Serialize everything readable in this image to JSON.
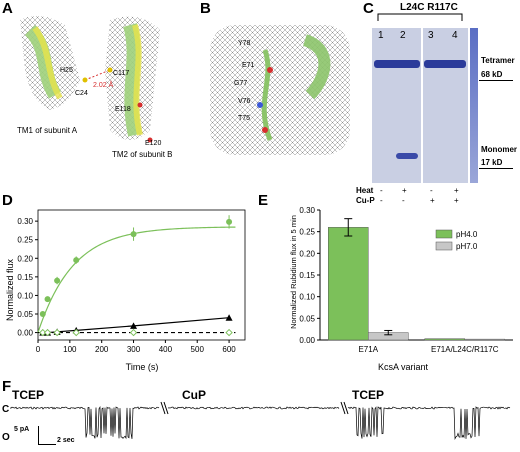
{
  "panels": {
    "A": {
      "letter": "A",
      "labels": [
        "H25",
        "C117",
        "2.02 Å",
        "C24",
        "E118",
        "E120"
      ],
      "captions": [
        "TM1 of subunit A",
        "TM2 of subunit B"
      ]
    },
    "B": {
      "letter": "B",
      "labels": [
        "Y78",
        "E71",
        "G77",
        "V76",
        "T75"
      ]
    },
    "C": {
      "letter": "C",
      "title": "L24C R117C",
      "lanes": [
        "1",
        "2",
        "3",
        "4"
      ],
      "right_labels": [
        {
          "name": "Tetramer",
          "mw": "68 kD"
        },
        {
          "name": "Monomer",
          "mw": "17 kD"
        }
      ],
      "rows": [
        {
          "label": "Heat",
          "values": [
            "-",
            "+",
            "-",
            "+"
          ]
        },
        {
          "label": "Cu-P",
          "values": [
            "-",
            "-",
            "+",
            "+"
          ]
        }
      ]
    },
    "D": {
      "letter": "D",
      "chart_data": {
        "type": "scatter",
        "xlabel": "Time (s)",
        "ylabel": "Normalized flux",
        "xlim": [
          0,
          650
        ],
        "ylim": [
          -0.02,
          0.33
        ],
        "xticks": [
          0,
          100,
          200,
          300,
          400,
          500,
          600
        ],
        "yticks": [
          0.0,
          0.05,
          0.1,
          0.15,
          0.2,
          0.25,
          0.3
        ],
        "ytick_labels": [
          "0.00",
          "0.05",
          "0.10",
          "0.15",
          "0.20",
          "0.25",
          "0.30"
        ],
        "series": [
          {
            "marker": "circle",
            "color": "#7cc05a",
            "x": [
              15,
              30,
              60,
              120,
              300,
              600
            ],
            "y": [
              0.05,
              0.09,
              0.14,
              0.195,
              0.265,
              0.298
            ],
            "err": [
              0.006,
              0.006,
              0.01,
              0.01,
              0.018,
              0.018
            ]
          },
          {
            "marker": "triangle",
            "color": "#000000",
            "x": [
              15,
              30,
              60,
              120,
              300,
              600
            ],
            "y": [
              0.0,
              0.0,
              0.002,
              0.006,
              0.018,
              0.04
            ],
            "err": [
              0,
              0,
              0,
              0,
              0.003,
              0.004
            ]
          },
          {
            "marker": "diamond",
            "color": "#7cc05a",
            "x": [
              15,
              30,
              60,
              120,
              300,
              600
            ],
            "y": [
              0.0,
              0.0,
              0.0,
              0.0,
              0.0,
              0.0
            ],
            "err": [
              0,
              0,
              0,
              0,
              0,
              0
            ]
          }
        ]
      }
    },
    "E": {
      "letter": "E",
      "chart_data": {
        "type": "bar",
        "categories": [
          "E71A",
          "E71A/L24C/R117C"
        ],
        "series": [
          {
            "name": "pH4.0",
            "color": "#7cc05a",
            "values": [
              0.26,
              0.003
            ],
            "err": [
              0.02,
              0.0
            ]
          },
          {
            "name": "pH7.0",
            "color": "#c7c7c7",
            "values": [
              0.017,
              0.002
            ],
            "err": [
              0.005,
              0.0
            ]
          }
        ],
        "xlabel": "KcsA variant",
        "ylabel": "Normalized Rubidium flux in 5 min",
        "ylim": [
          0,
          0.3
        ],
        "yticks": [
          0.0,
          0.05,
          0.1,
          0.15,
          0.2,
          0.25,
          0.3
        ],
        "ytick_labels": [
          "0.00",
          "0.05",
          "0.10",
          "0.15",
          "0.20",
          "0.25",
          "0.30"
        ],
        "legend": "top-right"
      }
    },
    "F": {
      "letter": "F",
      "labels": [
        "TCEP",
        "CuP",
        "TCEP"
      ],
      "state_labels": [
        "C",
        "O"
      ],
      "scale_labels": [
        "5 pA",
        "2 sec"
      ]
    }
  }
}
